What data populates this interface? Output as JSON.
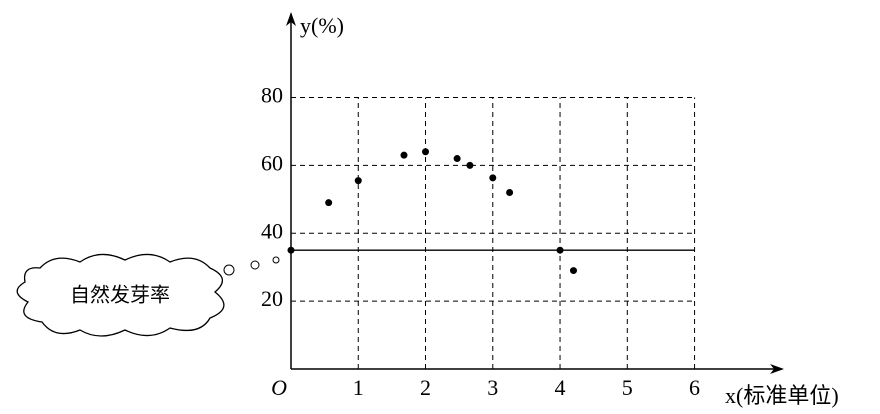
{
  "chart_data": {
    "type": "scatter",
    "y_label": "y(%)",
    "x_label": "x(标准单位)",
    "origin_label": "O",
    "annotation": "自然发芽率",
    "x": [
      0,
      0.56,
      1,
      1.68,
      2,
      2.47,
      2.66,
      3,
      3.25,
      4,
      4.2
    ],
    "values": [
      35,
      49,
      55.5,
      63,
      64,
      62,
      60,
      56.3,
      52,
      35,
      29
    ],
    "color": "#000000",
    "reference_line": 35,
    "xlim": [
      0,
      7.3
    ],
    "ylim": [
      0,
      104
    ],
    "xticks": [
      1,
      2,
      3,
      4,
      5,
      6
    ],
    "yticks": [
      20,
      40,
      60,
      80
    ],
    "grid": true
  }
}
